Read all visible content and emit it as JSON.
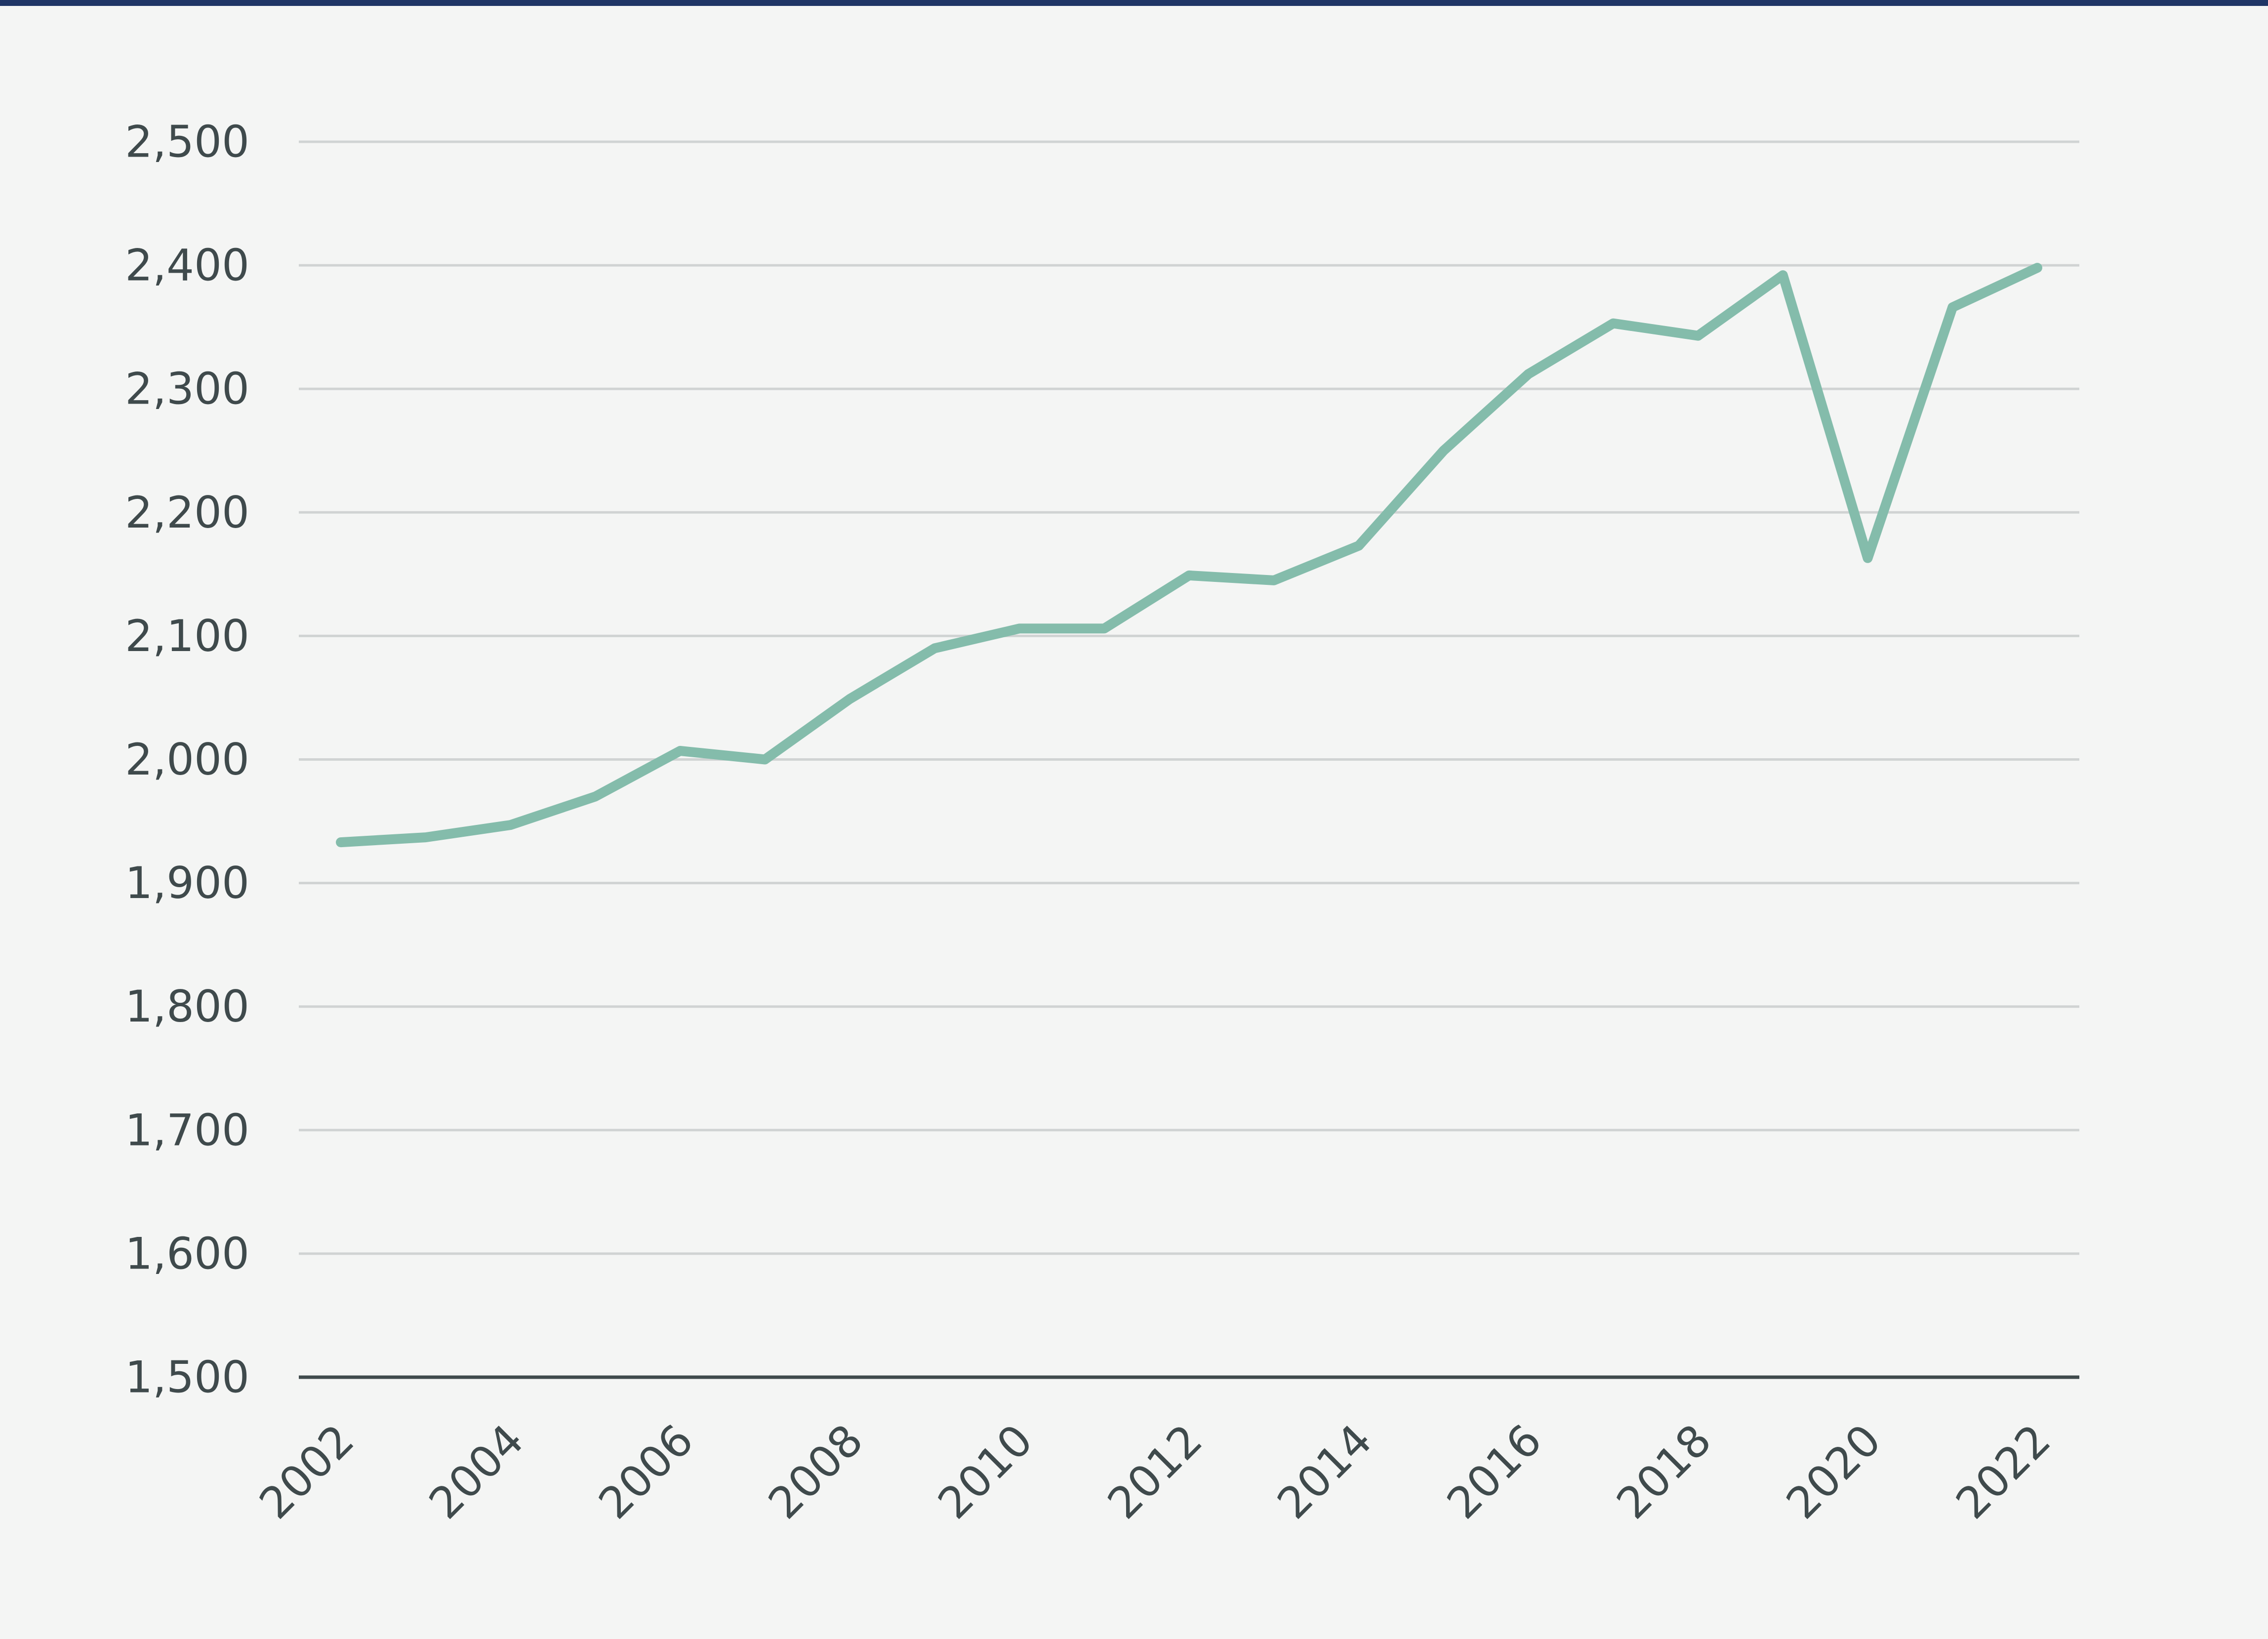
{
  "colors": {
    "line": "#84bcab",
    "grid": "#d0d3d3",
    "axis": "#3f4a4c",
    "text": "#3f4a4c",
    "top_rule": "#1f3566",
    "background": "#f4f5f4"
  },
  "chart_data": {
    "type": "line",
    "title": "",
    "xlabel": "",
    "ylabel": "",
    "x": [
      2002,
      2003,
      2004,
      2005,
      2006,
      2007,
      2008,
      2009,
      2010,
      2011,
      2012,
      2013,
      2014,
      2015,
      2016,
      2017,
      2018,
      2019,
      2020,
      2021,
      2022
    ],
    "series": [
      {
        "values": [
          1933,
          1937,
          1947,
          1970,
          2007,
          2000,
          2049,
          2090,
          2106,
          2106,
          2149,
          2145,
          2173,
          2250,
          2312,
          2353,
          2343,
          2392,
          2163,
          2366,
          2398
        ]
      }
    ],
    "ylim": [
      1500,
      2500
    ],
    "yticks": [
      1500,
      1600,
      1700,
      1800,
      1900,
      2000,
      2100,
      2200,
      2300,
      2400,
      2500
    ],
    "ytick_labels": [
      "1,500",
      "1,600",
      "1,700",
      "1,800",
      "1,900",
      "2,000",
      "2,100",
      "2,200",
      "2,300",
      "2,400",
      "2,500"
    ],
    "xtick_labels": [
      "2002",
      "2004",
      "2006",
      "2008",
      "2010",
      "2012",
      "2014",
      "2016",
      "2018",
      "2020",
      "2022"
    ],
    "grid": true,
    "legend": "none"
  }
}
